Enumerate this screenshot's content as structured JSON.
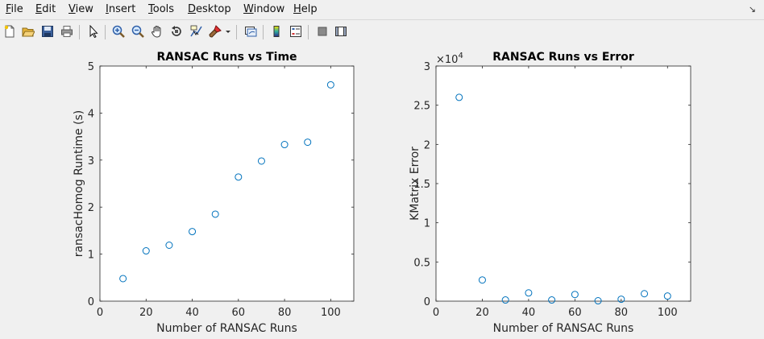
{
  "menubar": {
    "items": [
      {
        "mnemonic": "F",
        "rest": "ile"
      },
      {
        "mnemonic": "E",
        "rest": "dit"
      },
      {
        "mnemonic": "V",
        "rest": "iew"
      },
      {
        "mnemonic": "I",
        "rest": "nsert"
      },
      {
        "mnemonic": "T",
        "rest": "ools"
      },
      {
        "mnemonic": "D",
        "rest": "esktop"
      },
      {
        "mnemonic": "W",
        "rest": "indow"
      },
      {
        "mnemonic": "H",
        "rest": "elp"
      }
    ],
    "overflow_icon": "menu-overflow-icon"
  },
  "toolbar": {
    "icons": [
      "new-figure-icon",
      "open-file-icon",
      "save-icon",
      "print-icon",
      "select-arrow-icon",
      "zoom-in-icon",
      "zoom-out-icon",
      "pan-hand-icon",
      "rotate-3d-icon",
      "data-cursor-icon",
      "brush-icon",
      "brush-dropdown-icon",
      "link-plot-icon",
      "colorbar-icon",
      "legend-icon",
      "hide-plot-tools-icon",
      "show-plot-tools-icon"
    ]
  },
  "colors": {
    "marker": "#0072bd",
    "axes_bg": "#ffffff",
    "figure_bg": "#f0f0f0",
    "axis_line": "#262626"
  },
  "chart_data": [
    {
      "type": "scatter",
      "title": "RANSAC Runs vs Time",
      "xlabel": "Number of RANSAC Runs",
      "ylabel": "ransacHomog Runtime (s)",
      "xlim": [
        0,
        110
      ],
      "ylim": [
        0,
        5
      ],
      "xticks": [
        0,
        20,
        40,
        60,
        80,
        100
      ],
      "yticks": [
        0,
        1,
        2,
        3,
        4,
        5
      ],
      "ytick_labels": [
        "0",
        "1",
        "2",
        "3",
        "4",
        "5"
      ],
      "exponent_label": "",
      "x": [
        10,
        20,
        30,
        40,
        50,
        60,
        70,
        80,
        90,
        100
      ],
      "y": [
        0.48,
        1.07,
        1.19,
        1.48,
        1.85,
        2.64,
        2.98,
        3.33,
        3.38,
        4.6
      ]
    },
    {
      "type": "scatter",
      "title": "RANSAC Runs vs Error",
      "xlabel": "Number of RANSAC Runs",
      "ylabel": "KMatrix Error",
      "xlim": [
        0,
        110
      ],
      "ylim": [
        0,
        30000
      ],
      "xticks": [
        0,
        20,
        40,
        60,
        80,
        100
      ],
      "yticks": [
        0,
        5000,
        10000,
        15000,
        20000,
        25000,
        30000
      ],
      "ytick_labels": [
        "0",
        "0.5",
        "1",
        "1.5",
        "2",
        "2.5",
        "3"
      ],
      "exponent_label": "×10",
      "exponent_power": "4",
      "x": [
        10,
        20,
        30,
        40,
        50,
        60,
        70,
        80,
        90,
        100
      ],
      "y": [
        26000,
        2700,
        150,
        1050,
        150,
        850,
        50,
        250,
        950,
        650
      ]
    }
  ]
}
